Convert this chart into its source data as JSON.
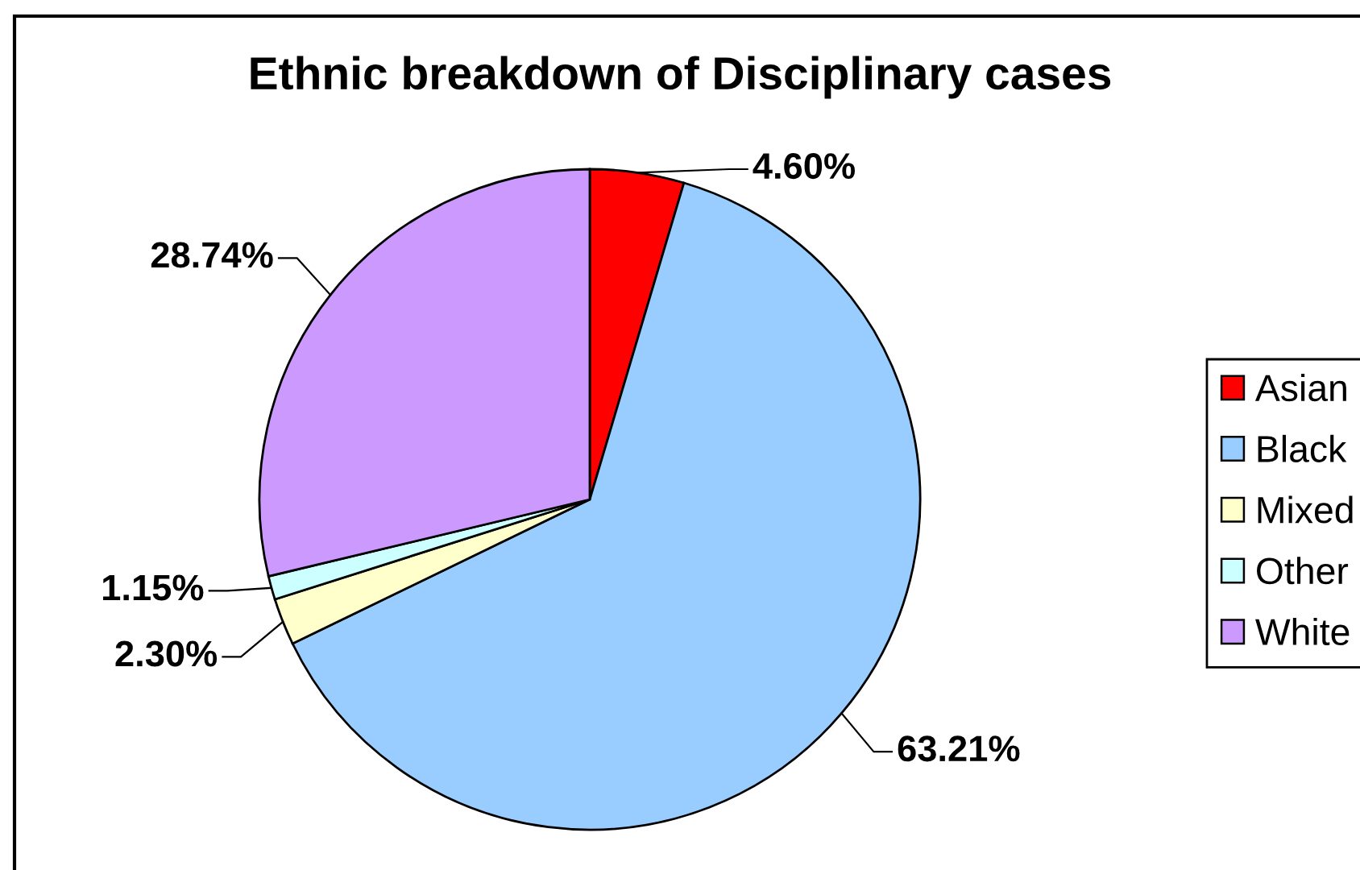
{
  "chart_data": {
    "type": "pie",
    "title": "Ethnic breakdown of Disciplinary cases",
    "categories": [
      "Asian",
      "Black",
      "Mixed",
      "Other",
      "White"
    ],
    "values": [
      4.6,
      63.21,
      2.3,
      1.15,
      28.74
    ],
    "colors": [
      "#ff0000",
      "#99ccff",
      "#ffffcc",
      "#ccffff",
      "#cc99ff"
    ],
    "value_labels": [
      "4.60%",
      "63.21%",
      "2.30%",
      "1.15%",
      "28.74%"
    ],
    "legend": "right"
  }
}
